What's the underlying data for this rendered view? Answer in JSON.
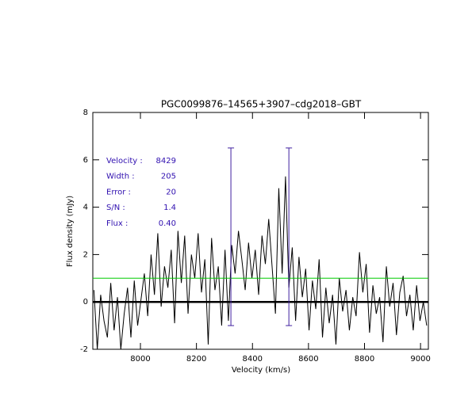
{
  "chart_data": {
    "type": "line",
    "title": "PGC0099876–14565+3907–cdg2018–GBT",
    "x_label": "Velocity (km/s)",
    "y_label": "Flux density (mJy)",
    "xlim": [
      7830,
      9028
    ],
    "ylim": [
      -2,
      8
    ],
    "xticks": [
      8000,
      8200,
      8400,
      8600,
      8800,
      9000
    ],
    "yticks": [
      -2,
      0,
      2,
      4,
      6,
      8
    ],
    "series": [
      {
        "color": "#000000",
        "x": [
          7834,
          7846,
          7858,
          7870,
          7882,
          7894,
          7906,
          7918,
          7930,
          7942,
          7954,
          7966,
          7978,
          7990,
          8002,
          8014,
          8026,
          8038,
          8050,
          8062,
          8074,
          8086,
          8098,
          8110,
          8122,
          8134,
          8146,
          8158,
          8170,
          8182,
          8194,
          8206,
          8218,
          8230,
          8242,
          8254,
          8266,
          8278,
          8290,
          8302,
          8314,
          8326,
          8338,
          8350,
          8362,
          8374,
          8386,
          8398,
          8410,
          8422,
          8434,
          8446,
          8458,
          8470,
          8482,
          8494,
          8506,
          8518,
          8530,
          8542,
          8554,
          8566,
          8578,
          8590,
          8602,
          8614,
          8626,
          8638,
          8650,
          8662,
          8674,
          8686,
          8698,
          8710,
          8722,
          8734,
          8746,
          8758,
          8770,
          8782,
          8794,
          8806,
          8818,
          8830,
          8842,
          8854,
          8866,
          8878,
          8890,
          8902,
          8914,
          8926,
          8938,
          8950,
          8962,
          8974,
          8986,
          8998,
          9010,
          9022
        ],
        "values": [
          0.5,
          -2,
          0.3,
          -0.8,
          -1.5,
          0.8,
          -1.2,
          0.2,
          -2,
          -0.5,
          0.6,
          -1.5,
          0.9,
          -1.0,
          0.1,
          1.2,
          -0.6,
          2.0,
          0.3,
          2.9,
          -0.2,
          1.5,
          0.6,
          2.2,
          -0.9,
          3.0,
          0.8,
          2.8,
          -0.5,
          2.0,
          1.0,
          2.9,
          0.4,
          1.8,
          -1.8,
          2.7,
          0.5,
          1.5,
          -1.0,
          2.2,
          -0.8,
          2.4,
          1.2,
          3.0,
          1.8,
          0.5,
          2.5,
          1.0,
          2.2,
          0.3,
          2.8,
          1.6,
          3.5,
          1.5,
          -0.5,
          4.8,
          1.2,
          5.3,
          0.6,
          2.3,
          -0.8,
          1.9,
          0.2,
          1.4,
          -1.2,
          0.9,
          -0.3,
          1.8,
          -1.5,
          0.6,
          -0.9,
          0.3,
          -1.8,
          1.0,
          -0.4,
          0.5,
          -1.2,
          0.2,
          -0.6,
          2.1,
          0.4,
          1.6,
          -1.3,
          0.7,
          -0.5,
          0.2,
          -1.7,
          1.5,
          -0.2,
          0.8,
          -1.4,
          0.4,
          1.1,
          -0.6,
          0.3,
          -1.2,
          0.7,
          -0.8,
          0.0,
          -1.0
        ]
      }
    ],
    "hlines": [
      {
        "value": 0,
        "color": "#000000"
      },
      {
        "value": 1,
        "color": "#00cc00"
      }
    ],
    "markers": {
      "color": "#4020a0",
      "x": [
        8323,
        8530
      ],
      "ymin": -1,
      "ymax": 6.5
    },
    "stats_color": "#3010b0",
    "stats": [
      {
        "name": "Velocity :",
        "value": 8429
      },
      {
        "name": "Width :",
        "value": 205
      },
      {
        "name": "Error :",
        "value": 20
      },
      {
        "name": "S/N :",
        "value": 1.4
      },
      {
        "name": "Flux :",
        "value": 0.4,
        "value_label": "0.40"
      }
    ]
  }
}
